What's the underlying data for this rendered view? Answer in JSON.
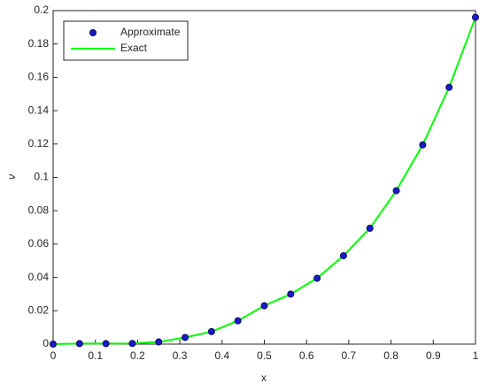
{
  "chart_data": {
    "type": "line",
    "xlabel": "x",
    "ylabel": "ν",
    "x": [
      0,
      0.0625,
      0.125,
      0.1875,
      0.25,
      0.3125,
      0.375,
      0.4375,
      0.5,
      0.5625,
      0.625,
      0.6875,
      0.75,
      0.8125,
      0.875,
      0.9375,
      1
    ],
    "series": [
      {
        "name": "Approximate",
        "style": "marker",
        "color": "#1a1acc",
        "values": [
          0,
          0.0003,
          0.0003,
          0.0004,
          0.0013,
          0.004,
          0.0075,
          0.014,
          0.023,
          0.03,
          0.0395,
          0.053,
          0.0695,
          0.092,
          0.1195,
          0.154,
          0.196
        ]
      },
      {
        "name": "Exact",
        "style": "line",
        "color": "#00ff00",
        "values": [
          0,
          0.0003,
          0.0003,
          0.0004,
          0.0013,
          0.004,
          0.0075,
          0.014,
          0.023,
          0.03,
          0.0395,
          0.053,
          0.0695,
          0.092,
          0.1195,
          0.154,
          0.196
        ]
      }
    ],
    "xlim": [
      0,
      1
    ],
    "xticks": [
      0,
      0.1,
      0.2,
      0.3,
      0.4,
      0.5,
      0.6,
      0.7,
      0.8,
      0.9,
      1
    ],
    "ylim": [
      0,
      0.2
    ],
    "yticks": [
      0,
      0.02,
      0.04,
      0.06,
      0.08,
      0.1,
      0.12,
      0.14,
      0.16,
      0.18,
      0.2
    ],
    "grid": false,
    "legend": "upper-left"
  }
}
